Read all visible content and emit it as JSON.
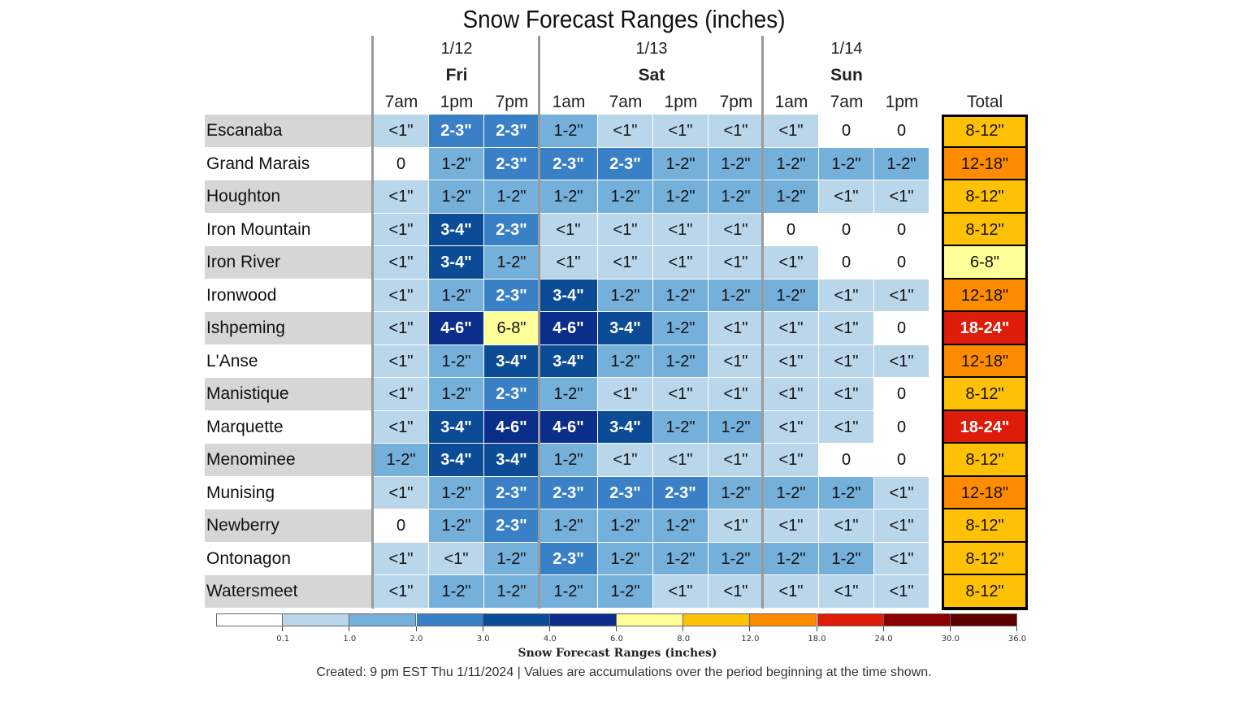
{
  "chart_data": {
    "type": "table",
    "title": "Snow Forecast Ranges (inches)",
    "periods": [
      {
        "date": "1/12",
        "day": "Fri",
        "times": [
          "7am",
          "1pm",
          "7pm"
        ]
      },
      {
        "date": "1/13",
        "day": "Sat",
        "times": [
          "1am",
          "7am",
          "1pm",
          "7pm"
        ]
      },
      {
        "date": "1/14",
        "day": "Sun",
        "times": [
          "1am",
          "7am",
          "1pm"
        ]
      }
    ],
    "total_header": "Total",
    "rows": [
      {
        "location": "Escanaba",
        "values": [
          "<1\"",
          "2-3\"",
          "2-3\"",
          "1-2\"",
          "<1\"",
          "<1\"",
          "<1\"",
          "<1\"",
          "0",
          "0"
        ],
        "total": "8-12\""
      },
      {
        "location": "Grand Marais",
        "values": [
          "0",
          "1-2\"",
          "2-3\"",
          "2-3\"",
          "2-3\"",
          "1-2\"",
          "1-2\"",
          "1-2\"",
          "1-2\"",
          "1-2\""
        ],
        "total": "12-18\""
      },
      {
        "location": "Houghton",
        "values": [
          "<1\"",
          "1-2\"",
          "1-2\"",
          "1-2\"",
          "1-2\"",
          "1-2\"",
          "1-2\"",
          "1-2\"",
          "<1\"",
          "<1\""
        ],
        "total": "8-12\""
      },
      {
        "location": "Iron Mountain",
        "values": [
          "<1\"",
          "3-4\"",
          "2-3\"",
          "<1\"",
          "<1\"",
          "<1\"",
          "<1\"",
          "0",
          "0",
          "0"
        ],
        "total": "8-12\""
      },
      {
        "location": "Iron River",
        "values": [
          "<1\"",
          "3-4\"",
          "1-2\"",
          "<1\"",
          "<1\"",
          "<1\"",
          "<1\"",
          "<1\"",
          "0",
          "0"
        ],
        "total": "6-8\""
      },
      {
        "location": "Ironwood",
        "values": [
          "<1\"",
          "1-2\"",
          "2-3\"",
          "3-4\"",
          "1-2\"",
          "1-2\"",
          "1-2\"",
          "1-2\"",
          "<1\"",
          "<1\""
        ],
        "total": "12-18\""
      },
      {
        "location": "Ishpeming",
        "values": [
          "<1\"",
          "4-6\"",
          "6-8\"",
          "4-6\"",
          "3-4\"",
          "1-2\"",
          "<1\"",
          "<1\"",
          "<1\"",
          "0"
        ],
        "total": "18-24\""
      },
      {
        "location": "L'Anse",
        "values": [
          "<1\"",
          "1-2\"",
          "3-4\"",
          "3-4\"",
          "1-2\"",
          "1-2\"",
          "<1\"",
          "<1\"",
          "<1\"",
          "<1\""
        ],
        "total": "12-18\""
      },
      {
        "location": "Manistique",
        "values": [
          "<1\"",
          "1-2\"",
          "2-3\"",
          "1-2\"",
          "<1\"",
          "<1\"",
          "<1\"",
          "<1\"",
          "<1\"",
          "0"
        ],
        "total": "8-12\""
      },
      {
        "location": "Marquette",
        "values": [
          "<1\"",
          "3-4\"",
          "4-6\"",
          "4-6\"",
          "3-4\"",
          "1-2\"",
          "1-2\"",
          "<1\"",
          "<1\"",
          "0"
        ],
        "total": "18-24\""
      },
      {
        "location": "Menominee",
        "values": [
          "1-2\"",
          "3-4\"",
          "3-4\"",
          "1-2\"",
          "<1\"",
          "<1\"",
          "<1\"",
          "<1\"",
          "0",
          "0"
        ],
        "total": "8-12\""
      },
      {
        "location": "Munising",
        "values": [
          "<1\"",
          "1-2\"",
          "2-3\"",
          "2-3\"",
          "2-3\"",
          "2-3\"",
          "1-2\"",
          "1-2\"",
          "1-2\"",
          "<1\""
        ],
        "total": "12-18\""
      },
      {
        "location": "Newberry",
        "values": [
          "0",
          "1-2\"",
          "2-3\"",
          "1-2\"",
          "1-2\"",
          "1-2\"",
          "<1\"",
          "<1\"",
          "<1\"",
          "<1\""
        ],
        "total": "8-12\""
      },
      {
        "location": "Ontonagon",
        "values": [
          "<1\"",
          "<1\"",
          "1-2\"",
          "2-3\"",
          "1-2\"",
          "1-2\"",
          "1-2\"",
          "1-2\"",
          "1-2\"",
          "<1\""
        ],
        "total": "8-12\""
      },
      {
        "location": "Watersmeet",
        "values": [
          "<1\"",
          "1-2\"",
          "1-2\"",
          "1-2\"",
          "1-2\"",
          "<1\"",
          "<1\"",
          "<1\"",
          "<1\"",
          "<1\""
        ],
        "total": "8-12\""
      }
    ],
    "colorbar": {
      "title": "Snow Forecast Ranges (inches)",
      "ticks": [
        "0.1",
        "1.0",
        "2.0",
        "3.0",
        "4.0",
        "6.0",
        "8.0",
        "12.0",
        "18.0",
        "24.0",
        "30.0",
        "36.0"
      ],
      "colors": [
        "#ffffff",
        "#b9d6ea",
        "#75b0da",
        "#3a80c6",
        "#0c4c96",
        "#0b2e8a",
        "#ffff99",
        "#ffc105",
        "#ff8c00",
        "#dd1c0a",
        "#8b0000",
        "#5c0000"
      ]
    },
    "value_colors": {
      "0": "#ffffff",
      "<1\"": "#b9d6ea",
      "1-2\"": "#75b0da",
      "2-3\"": "#3a80c6",
      "3-4\"": "#0c4c96",
      "4-6\"": "#0b2e8a",
      "6-8\"": "#ffff99",
      "8-12\"": "#ffc105",
      "12-18\"": "#ff8c00",
      "18-24\"": "#dd1c0a"
    },
    "footer": "Created: 9 pm EST Thu 1/11/2024  |  Values are accumulations over the period beginning at the time shown."
  }
}
